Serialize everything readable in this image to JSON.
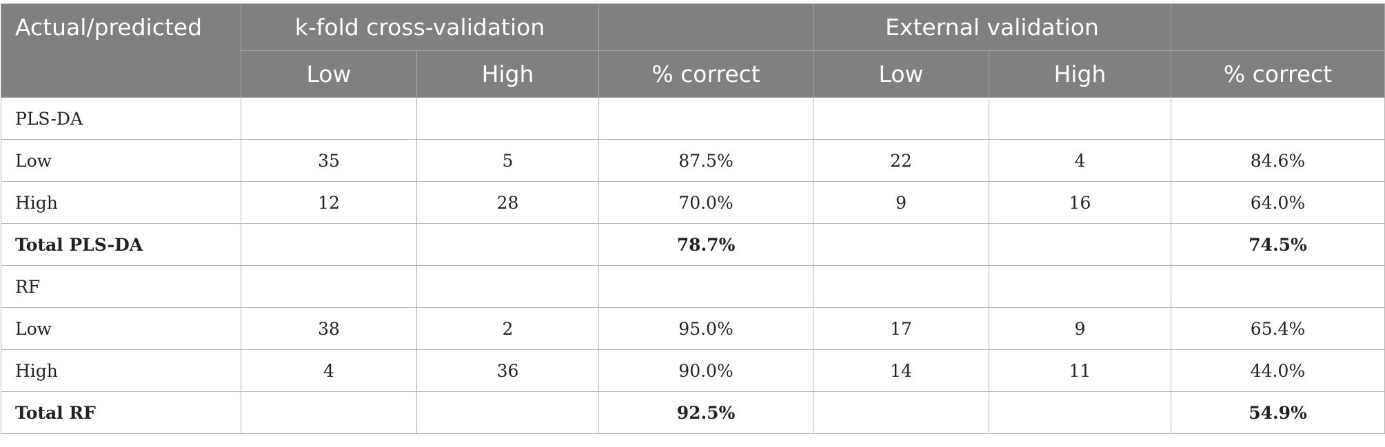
{
  "header": {
    "corner": "Actual/predicted",
    "group_kfold": "k-fold cross-validation",
    "group_external": "External validation",
    "columns": [
      "Low",
      "High",
      "% correct",
      "Low",
      "High",
      "% correct"
    ]
  },
  "rows": [
    {
      "label": "PLS-DA",
      "cells": [
        "",
        "",
        "",
        "",
        "",
        ""
      ]
    },
    {
      "label": "Low",
      "cells": [
        "35",
        "5",
        "87.5%",
        "22",
        "4",
        "84.6%"
      ]
    },
    {
      "label": "High",
      "cells": [
        "12",
        "28",
        "70.0%",
        "9",
        "16",
        "64.0%"
      ]
    },
    {
      "label": "Total PLS-DA",
      "cells": [
        "",
        "",
        "78.7%",
        "",
        "",
        "74.5%"
      ]
    },
    {
      "label": "RF",
      "cells": [
        "",
        "",
        "",
        "",
        "",
        ""
      ]
    },
    {
      "label": "Low",
      "cells": [
        "38",
        "2",
        "95.0%",
        "17",
        "9",
        "65.4%"
      ]
    },
    {
      "label": "High",
      "cells": [
        "4",
        "36",
        "90.0%",
        "14",
        "11",
        "44.0%"
      ]
    },
    {
      "label": "Total RF",
      "cells": [
        "",
        "",
        "92.5%",
        "",
        "",
        "54.9%"
      ]
    }
  ]
}
